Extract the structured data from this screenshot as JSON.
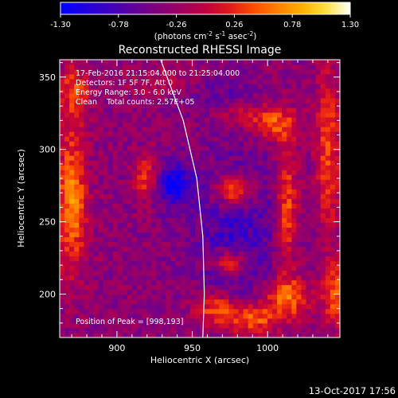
{
  "colorbar": {
    "ticks": [
      "-1.30",
      "-0.78",
      "-0.26",
      "0.26",
      "0.78",
      "1.30"
    ],
    "unit_pre": "(photons cm",
    "unit_exp1": "-2",
    "unit_mid": " s",
    "unit_exp2": "-1",
    "unit_mid2": " asec",
    "unit_exp3": "-2",
    "unit_post": ")",
    "palette": [
      "#0000ff",
      "#1f00e0",
      "#3f00c0",
      "#60009c",
      "#80007c",
      "#a00060",
      "#c00040",
      "#e01a1a",
      "#ff4d00",
      "#ff8000",
      "#ffb000",
      "#ffe040",
      "#ffffff"
    ]
  },
  "chart_data": {
    "type": "heatmap",
    "title": "Reconstructed RHESSI Image",
    "xlabel": "Heliocentric X (arcsec)",
    "ylabel": "Heliocentric Y (arcsec)",
    "xlim": [
      862,
      1048
    ],
    "ylim": [
      170,
      362
    ],
    "xticks": [
      900,
      950,
      1000
    ],
    "yticks": [
      200,
      250,
      300,
      350
    ],
    "annotations": [
      "17-Feb-2016 21:15:04.000 to 21:25:04.000",
      "Detectors: 1F 5F 7F, Att 0",
      "Energy Range: 3.0 - 6.0 keV",
      "Clean    Total counts: 2.57E+05"
    ],
    "peak_label": "Position of Peak = [998,193]",
    "sources": [
      {
        "x": 920,
        "y": 280,
        "sx": 5.5,
        "sy": 10,
        "amp": 0.8
      },
      {
        "x": 937,
        "y": 276,
        "sx": 9,
        "sy": 10,
        "amp": -0.9
      },
      {
        "x": 978,
        "y": 272,
        "sx": 9,
        "sy": 8,
        "amp": 1.15
      },
      {
        "x": 975,
        "y": 222,
        "sx": 8,
        "sy": 6,
        "amp": 0.9
      },
      {
        "x": 979,
        "y": 245,
        "sx": 20,
        "sy": 40,
        "amp": -0.5
      },
      {
        "x": 965,
        "y": 190,
        "sx": 10,
        "sy": 8,
        "amp": 0.8
      },
      {
        "x": 990,
        "y": 183,
        "sx": 12,
        "sy": 8,
        "amp": 0.9
      },
      {
        "x": 1013,
        "y": 198,
        "sx": 10,
        "sy": 10,
        "amp": 0.9
      },
      {
        "x": 1013,
        "y": 260,
        "sx": 5,
        "sy": 30,
        "amp": 0.8
      },
      {
        "x": 1005,
        "y": 318,
        "sx": 10,
        "sy": 8,
        "amp": 0.8
      },
      {
        "x": 982,
        "y": 324,
        "sx": 12,
        "sy": 6,
        "amp": 0.4
      },
      {
        "x": 870,
        "y": 265,
        "sx": 7,
        "sy": 35,
        "amp": 1.0
      },
      {
        "x": 872,
        "y": 340,
        "sx": 7,
        "sy": 12,
        "amp": 0.7
      },
      {
        "x": 1040,
        "y": 300,
        "sx": 6,
        "sy": 40,
        "amp": 0.7
      },
      {
        "x": 1045,
        "y": 200,
        "sx": 6,
        "sy": 15,
        "amp": 0.8
      },
      {
        "x": 935,
        "y": 346,
        "sx": 20,
        "sy": 8,
        "amp": 0.35
      },
      {
        "x": 960,
        "y": 340,
        "sx": 20,
        "sy": 10,
        "amp": -0.3
      }
    ],
    "limb_curve": [
      [
        929,
        362
      ],
      [
        944,
        320
      ],
      [
        953,
        280
      ],
      [
        957,
        240
      ],
      [
        958,
        200
      ],
      [
        957,
        170
      ]
    ],
    "grid": false,
    "colorbar_range": [
      -1.3,
      1.3
    ]
  },
  "footer": {
    "timestamp": "13-Oct-2017 17:56"
  }
}
